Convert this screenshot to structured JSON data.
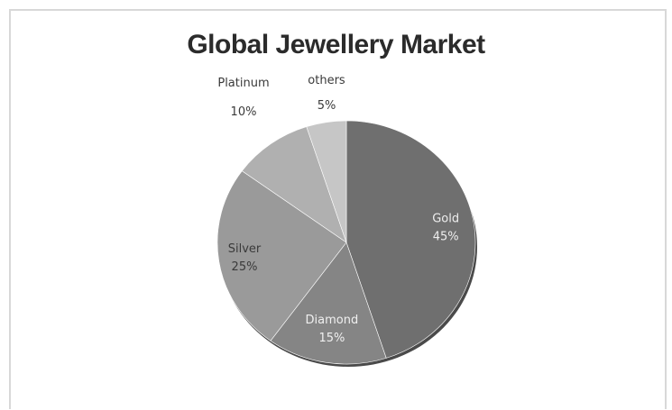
{
  "chart_data": {
    "type": "pie",
    "title": "Global Jewellery Market",
    "slices": [
      {
        "label": "Gold",
        "value": 45,
        "value_label": "45%",
        "color": "#6f6f6f",
        "text_color": "#eeeeee",
        "label_position": "inside"
      },
      {
        "label": "Diamond",
        "value": 15,
        "value_label": "15%",
        "color": "#858585",
        "text_color": "#f0f0f0",
        "label_position": "inside"
      },
      {
        "label": "Silver",
        "value": 25,
        "value_label": "25%",
        "color": "#9a9a9a",
        "text_color": "#3a3a3a",
        "label_position": "inside"
      },
      {
        "label": "Platinum",
        "value": 10,
        "value_label": "10%",
        "color": "#b0b0b0",
        "text_color": "#3a3a3a",
        "label_position": "outside"
      },
      {
        "label": "others",
        "value": 5,
        "value_label": "5%",
        "color": "#c6c6c6",
        "text_color": "#3a3a3a",
        "label_position": "outside"
      }
    ],
    "start_angle": "12 o'clock",
    "direction": "clockwise",
    "legend": "none",
    "shadow_color": "#4a4a4a"
  }
}
